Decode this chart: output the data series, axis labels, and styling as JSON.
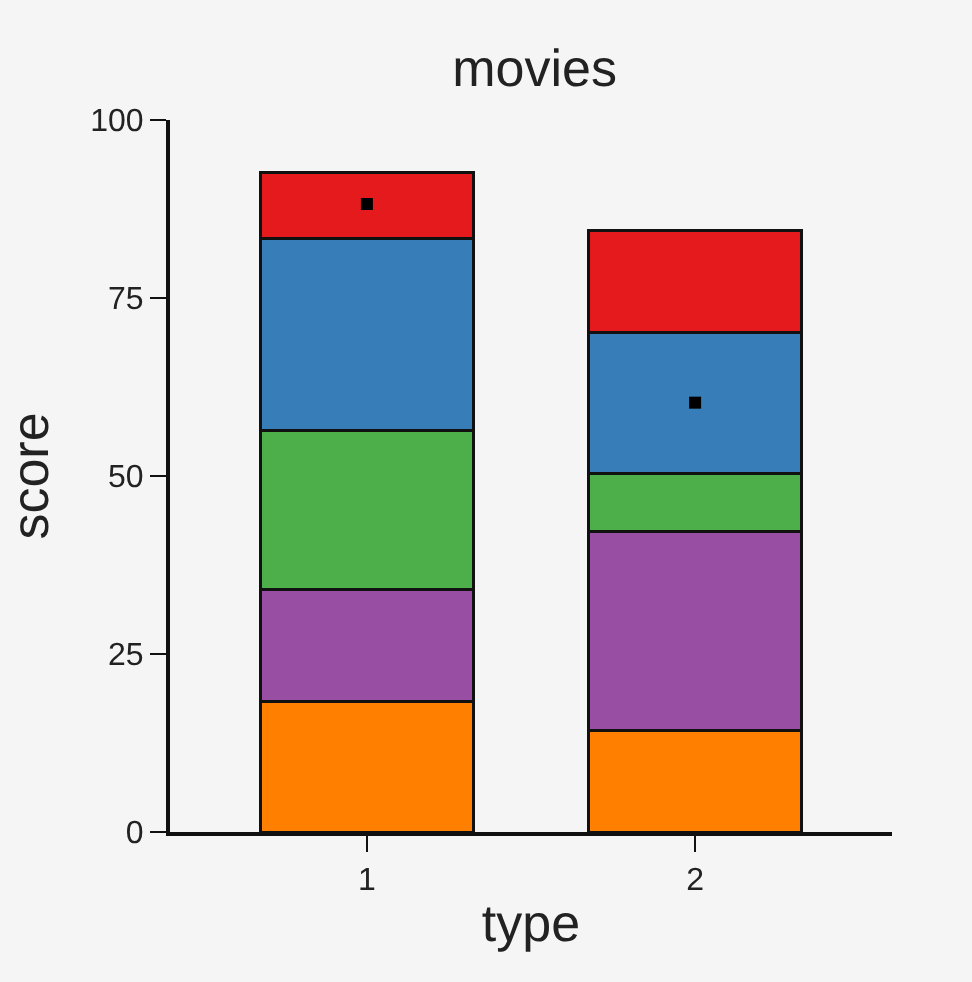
{
  "chart_data": {
    "type": "bar",
    "title": "movies",
    "xlabel": "type",
    "ylabel": "score",
    "categories": [
      "1",
      "2"
    ],
    "stacked": true,
    "ylim": [
      0,
      100
    ],
    "yticks": [
      0,
      25,
      50,
      75,
      100
    ],
    "grid": false,
    "series": [
      {
        "color": "#ff7f00",
        "values": [
          18.4,
          14.2
        ]
      },
      {
        "color": "#984ea3",
        "values": [
          15.7,
          28
        ]
      },
      {
        "color": "#4daf4a",
        "values": [
          22.3,
          8.1
        ]
      },
      {
        "color": "#377eb8",
        "values": [
          27,
          19.9
        ]
      },
      {
        "color": "#e41a1c",
        "values": [
          9.2,
          14.3
        ]
      },
      {
        "type": "scatter",
        "marker": "square",
        "color": "#000000",
        "x": [
          "1",
          "2"
        ],
        "values": [
          88.2,
          60.3
        ]
      }
    ]
  }
}
